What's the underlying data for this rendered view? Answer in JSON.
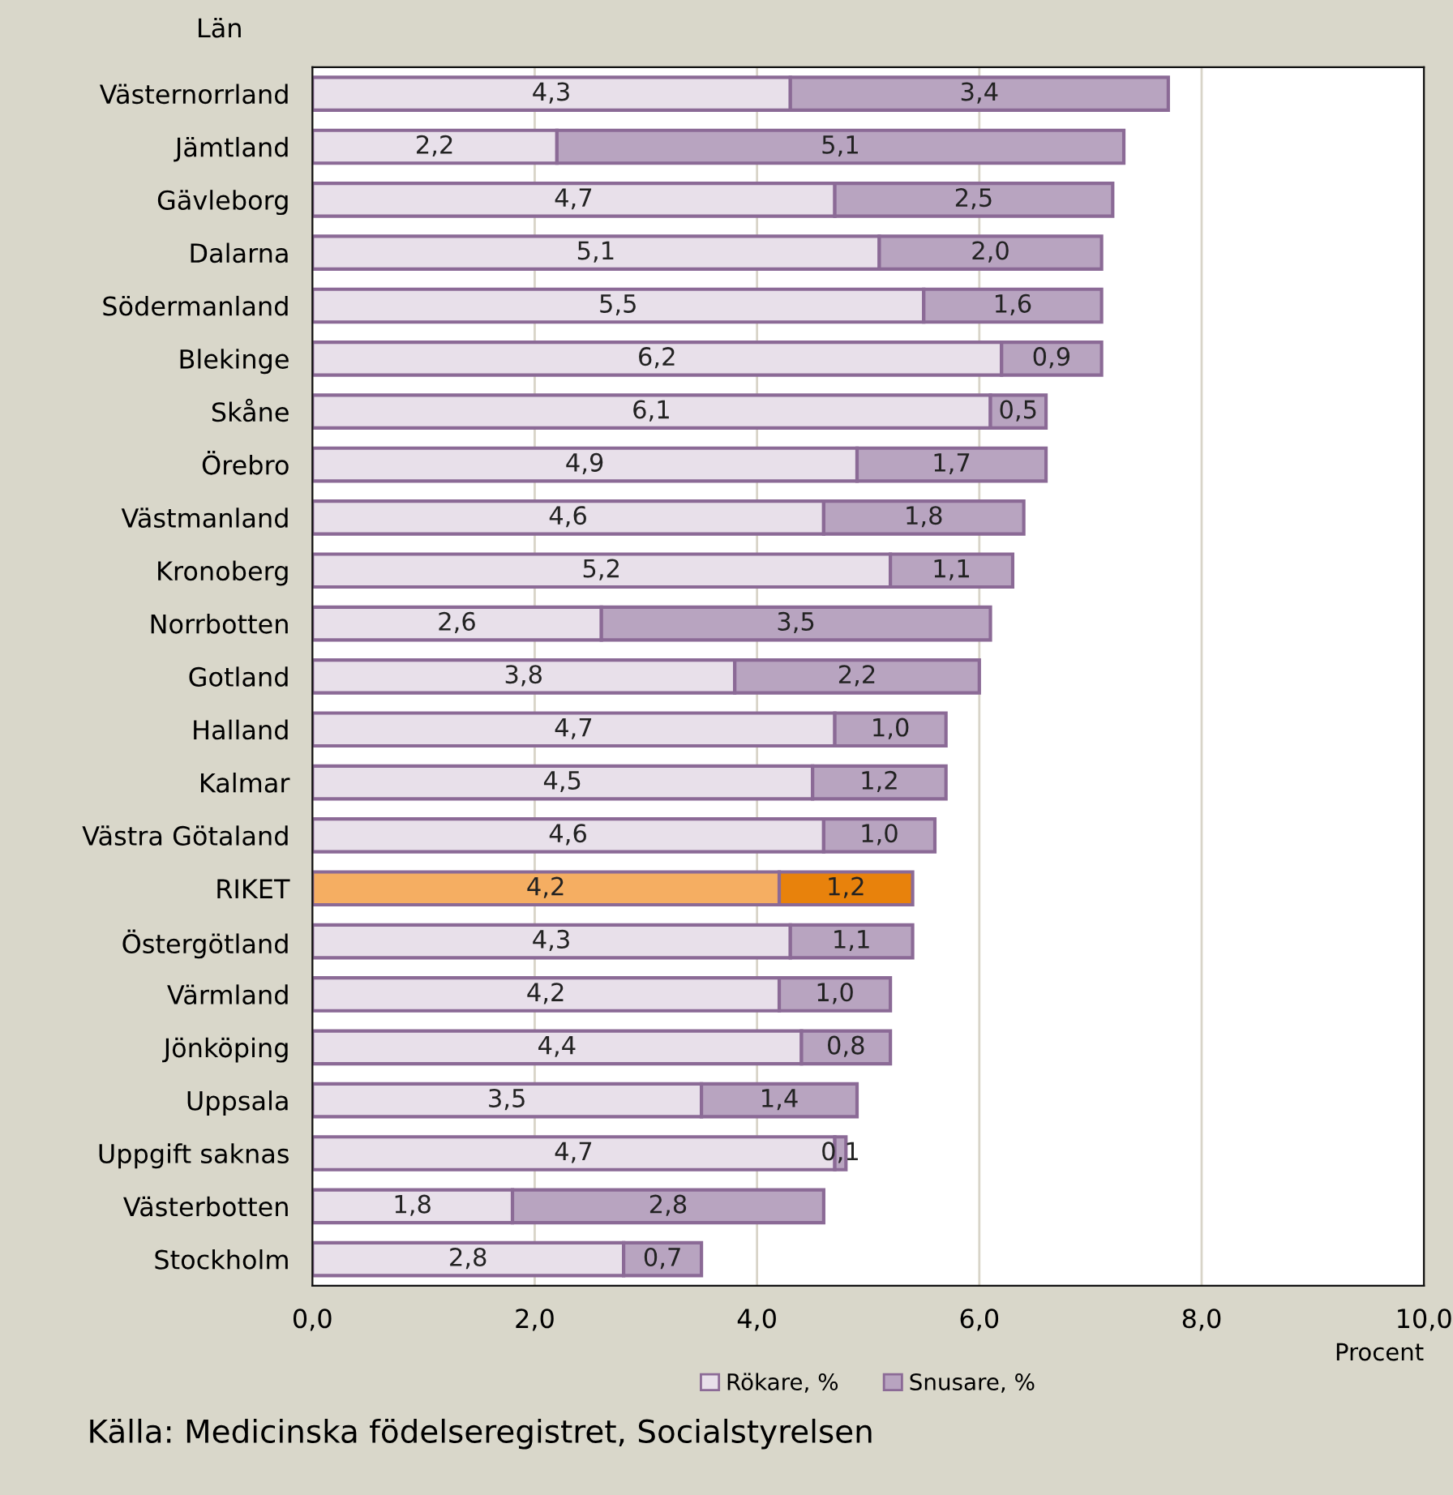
{
  "chart_data": {
    "type": "bar",
    "orientation": "horizontal",
    "stacked": true,
    "ylabel": "Län",
    "xlabel": "Procent",
    "categories": [
      "Västernorrland",
      "Jämtland",
      "Gävleborg",
      "Dalarna",
      "Södermanland",
      "Blekinge",
      "Skåne",
      "Örebro",
      "Västmanland",
      "Kronoberg",
      "Norrbotten",
      "Gotland",
      "Halland",
      "Kalmar",
      "Västra Götaland",
      "RIKET",
      "Östergötland",
      "Värmland",
      "Jönköping",
      "Uppsala",
      "Uppgift saknas",
      "Västerbotten",
      "Stockholm"
    ],
    "series": [
      {
        "name": "Rökare, %",
        "color": "#e8e0ea",
        "colors": [
          "#e8e0ea",
          "#e8e0ea",
          "#e8e0ea",
          "#e8e0ea",
          "#e8e0ea",
          "#e8e0ea",
          "#e8e0ea",
          "#e8e0ea",
          "#e8e0ea",
          "#e8e0ea",
          "#e8e0ea",
          "#e8e0ea",
          "#e8e0ea",
          "#e8e0ea",
          "#e8e0ea",
          "#f5ae62",
          "#e8e0ea",
          "#e8e0ea",
          "#e8e0ea",
          "#e8e0ea",
          "#e8e0ea",
          "#e8e0ea",
          "#e8e0ea"
        ],
        "values": [
          4.3,
          2.2,
          4.7,
          5.1,
          5.5,
          6.2,
          6.1,
          4.9,
          4.6,
          5.2,
          2.6,
          3.8,
          4.7,
          4.5,
          4.6,
          4.2,
          4.3,
          4.2,
          4.4,
          3.5,
          4.7,
          1.8,
          2.8
        ],
        "value_labels": [
          "4,3",
          "2,2",
          "4,7",
          "5,1",
          "5,5",
          "6,2",
          "6,1",
          "4,9",
          "4,6",
          "5,2",
          "2,6",
          "3,8",
          "4,7",
          "4,5",
          "4,6",
          "4,2",
          "4,3",
          "4,2",
          "4,4",
          "3,5",
          "4,7",
          "1,8",
          "2,8"
        ]
      },
      {
        "name": "Snusare, %",
        "color": "#b8a4c0",
        "colors": [
          "#b8a4c0",
          "#b8a4c0",
          "#b8a4c0",
          "#b8a4c0",
          "#b8a4c0",
          "#b8a4c0",
          "#b8a4c0",
          "#b8a4c0",
          "#b8a4c0",
          "#b8a4c0",
          "#b8a4c0",
          "#b8a4c0",
          "#b8a4c0",
          "#b8a4c0",
          "#b8a4c0",
          "#e8820c",
          "#b8a4c0",
          "#b8a4c0",
          "#b8a4c0",
          "#b8a4c0",
          "#b8a4c0",
          "#b8a4c0",
          "#b8a4c0"
        ],
        "values": [
          3.4,
          5.1,
          2.5,
          2.0,
          1.6,
          0.9,
          0.5,
          1.7,
          1.8,
          1.1,
          3.5,
          2.2,
          1.0,
          1.2,
          1.0,
          1.2,
          1.1,
          1.0,
          0.8,
          1.4,
          0.1,
          2.8,
          0.7
        ],
        "value_labels": [
          "3,4",
          "5,1",
          "2,5",
          "2,0",
          "1,6",
          "0,9",
          "0,5",
          "1,7",
          "1,8",
          "1,1",
          "3,5",
          "2,2",
          "1,0",
          "1,2",
          "1,0",
          "1,2",
          "1,1",
          "1,0",
          "0,8",
          "1,4",
          "0,1",
          "2,8",
          "0,7"
        ]
      }
    ],
    "xlim": [
      0,
      10
    ],
    "xticks": [
      {
        "value": 0,
        "label": "0,0"
      },
      {
        "value": 2,
        "label": "2,0"
      },
      {
        "value": 4,
        "label": "4,0"
      },
      {
        "value": 6,
        "label": "6,0"
      },
      {
        "value": 8,
        "label": "8,0"
      },
      {
        "value": 10,
        "label": "10,0"
      }
    ],
    "grid": "x",
    "legend": "bottom",
    "annotations": [
      "Källa: Medicinska födelseregistret, Socialstyrelsen"
    ]
  }
}
